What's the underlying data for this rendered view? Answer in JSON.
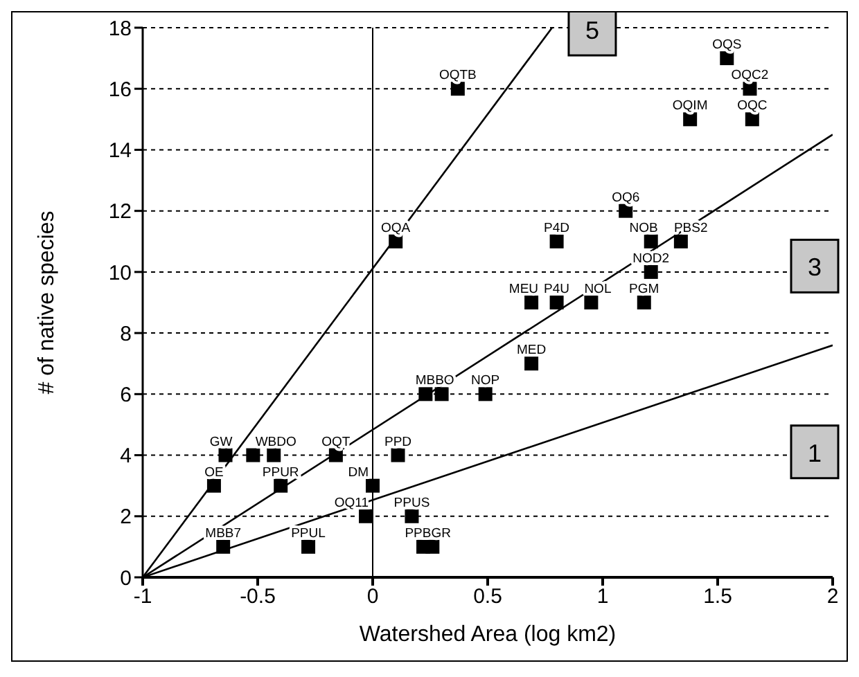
{
  "chart_data": {
    "type": "scatter",
    "xlabel": "Watershed Area (log km2)",
    "ylabel": "# of native species",
    "xlim": [
      -1,
      2
    ],
    "xticks": [
      -1,
      -0.5,
      0,
      0.5,
      1,
      1.5,
      2
    ],
    "ylim": [
      0,
      18
    ],
    "yticks": [
      0,
      2,
      4,
      6,
      8,
      10,
      12,
      14,
      16,
      18
    ],
    "grid": "y",
    "ref_lines": [
      {
        "axis": "x",
        "value": 0,
        "color": "#000000"
      }
    ],
    "series": [
      {
        "type": "scatter",
        "marker": "square",
        "color": "#000000",
        "x": [
          0.37,
          0.1,
          1.54,
          1.64,
          1.38,
          1.65,
          1.1,
          0.8,
          1.21,
          1.34,
          1.21,
          0.69,
          0.8,
          0.95,
          1.18,
          0.69,
          0.23,
          0.3,
          0.49,
          -0.64,
          -0.52,
          -0.43,
          -0.16,
          0.11,
          -0.69,
          -0.4,
          0,
          -0.03,
          0.17,
          -0.65,
          -0.28,
          0.22,
          0.26
        ],
        "values": [
          16,
          11,
          17,
          16,
          15,
          15,
          12,
          11,
          11,
          11,
          10,
          9,
          9,
          9,
          9,
          7,
          6,
          6,
          6,
          4,
          4,
          4,
          4,
          4,
          3,
          3,
          3,
          2,
          2,
          1,
          1,
          1,
          1
        ]
      },
      {
        "type": "line",
        "marker": "none",
        "name": "5",
        "color": "#000000",
        "x": [
          -1,
          0.78
        ],
        "values": [
          0,
          18
        ]
      },
      {
        "type": "line",
        "marker": "none",
        "name": "3",
        "color": "#000000",
        "x": [
          -1,
          2
        ],
        "values": [
          0,
          14.5
        ]
      },
      {
        "type": "line",
        "marker": "none",
        "name": "1",
        "color": "#000000",
        "x": [
          -1,
          2
        ],
        "values": [
          0,
          7.6
        ]
      }
    ],
    "annotations": [
      {
        "text": "OQTB",
        "x": 0.37,
        "y": 16
      },
      {
        "text": "OQA",
        "x": 0.1,
        "y": 11
      },
      {
        "text": "OQS",
        "x": 1.54,
        "y": 17
      },
      {
        "text": "OQC2",
        "x": 1.64,
        "y": 16
      },
      {
        "text": "OQIM",
        "x": 1.38,
        "y": 15
      },
      {
        "text": "OQC",
        "x": 1.65,
        "y": 15
      },
      {
        "text": "OQ6",
        "x": 1.1,
        "y": 12
      },
      {
        "text": "P4D",
        "x": 0.8,
        "y": 11
      },
      {
        "text": "NOB",
        "x": 1.21,
        "y": 11
      },
      {
        "text": "PBS2",
        "x": 1.34,
        "y": 11
      },
      {
        "text": "NOD2",
        "x": 1.21,
        "y": 10
      },
      {
        "text": "MEU",
        "x": 0.69,
        "y": 9
      },
      {
        "text": "P4U",
        "x": 0.8,
        "y": 9
      },
      {
        "text": "NOL",
        "x": 0.95,
        "y": 9
      },
      {
        "text": "PGM",
        "x": 1.18,
        "y": 9
      },
      {
        "text": "MED",
        "x": 0.69,
        "y": 7
      },
      {
        "text": "MBBO",
        "x": 0.27,
        "y": 6
      },
      {
        "text": "NOP",
        "x": 0.49,
        "y": 6
      },
      {
        "text": "GW",
        "x": -0.64,
        "y": 4
      },
      {
        "text": "WBDO",
        "x": -0.48,
        "y": 4
      },
      {
        "text": "OQT",
        "x": -0.16,
        "y": 4
      },
      {
        "text": "PPD",
        "x": 0.11,
        "y": 4
      },
      {
        "text": "OE",
        "x": -0.69,
        "y": 3
      },
      {
        "text": "PPUR",
        "x": -0.4,
        "y": 3
      },
      {
        "text": "DM",
        "x": 0,
        "y": 3
      },
      {
        "text": "OQ11",
        "x": -0.03,
        "y": 2
      },
      {
        "text": "PPUS",
        "x": 0.17,
        "y": 2
      },
      {
        "text": "MBB7",
        "x": -0.65,
        "y": 1
      },
      {
        "text": "PPUL",
        "x": -0.28,
        "y": 1
      },
      {
        "text": "PPBGR",
        "x": 0.24,
        "y": 1
      }
    ]
  }
}
